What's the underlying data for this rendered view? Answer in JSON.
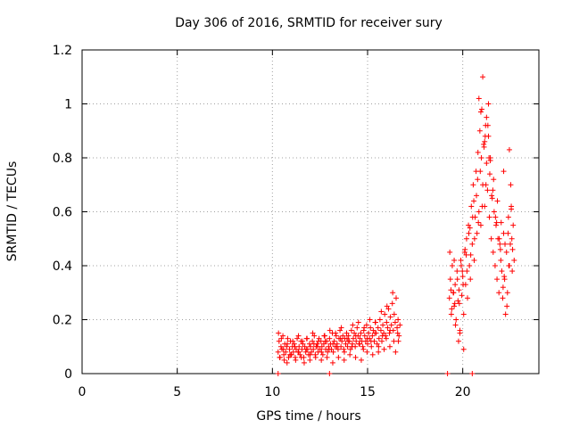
{
  "chart_data": {
    "type": "scatter",
    "title": "Day 306 of 2016, SRMTID for receiver sury",
    "xlabel": "GPS time / hours",
    "ylabel": "SRMTID / TECUs",
    "xlim": [
      0,
      24
    ],
    "ylim": [
      0,
      1.2
    ],
    "xticks": [
      0,
      5,
      10,
      15,
      20
    ],
    "xtick_labels": [
      "0",
      "5",
      "10",
      "15",
      "20"
    ],
    "yticks": [
      0,
      0.2,
      0.4,
      0.6,
      0.8,
      1.0,
      1.2
    ],
    "ytick_labels": [
      "0",
      "0.2",
      "0.4",
      "0.6",
      "0.8",
      "1",
      "1.2"
    ],
    "grid": true,
    "marker": "+",
    "series": [
      {
        "name": "SRMTID",
        "color": "#ff0000",
        "x": [
          10.3,
          10.35,
          10.4,
          10.45,
          10.5,
          10.55,
          10.6,
          10.65,
          10.7,
          10.75,
          10.8,
          10.85,
          10.9,
          10.95,
          11.0,
          11.05,
          11.1,
          11.15,
          11.2,
          11.25,
          11.3,
          11.35,
          11.4,
          11.45,
          11.5,
          11.55,
          11.6,
          11.65,
          11.7,
          11.75,
          11.8,
          11.85,
          11.9,
          11.95,
          12.0,
          12.05,
          12.1,
          12.15,
          12.2,
          12.25,
          12.3,
          12.35,
          12.4,
          12.45,
          12.5,
          12.55,
          12.6,
          12.65,
          12.7,
          12.75,
          12.8,
          12.85,
          12.9,
          12.95,
          13.0,
          13.05,
          13.1,
          13.15,
          13.2,
          13.25,
          13.3,
          13.35,
          13.4,
          13.45,
          13.5,
          13.55,
          13.6,
          13.65,
          13.7,
          13.75,
          13.8,
          13.85,
          13.9,
          13.95,
          14.0,
          14.05,
          14.1,
          14.15,
          14.2,
          14.25,
          14.3,
          14.35,
          14.4,
          14.45,
          14.5,
          14.55,
          14.6,
          14.65,
          14.7,
          14.75,
          14.8,
          14.85,
          14.9,
          14.95,
          15.0,
          15.05,
          15.1,
          15.15,
          15.2,
          15.25,
          15.3,
          15.35,
          15.4,
          15.45,
          15.5,
          15.55,
          15.6,
          15.65,
          15.7,
          15.75,
          15.8,
          15.85,
          15.9,
          15.95,
          16.0,
          16.05,
          16.1,
          16.15,
          16.2,
          16.25,
          16.3,
          16.35,
          16.4,
          16.45,
          16.5,
          16.55,
          16.6,
          16.65,
          16.7,
          10.32,
          10.47,
          10.62,
          10.77,
          10.92,
          11.07,
          11.22,
          11.37,
          11.52,
          11.67,
          11.82,
          11.97,
          12.12,
          12.27,
          12.42,
          12.57,
          12.72,
          12.87,
          13.02,
          13.17,
          13.32,
          13.47,
          13.62,
          13.77,
          13.92,
          14.07,
          14.22,
          14.37,
          14.52,
          14.67,
          14.82,
          14.97,
          15.12,
          15.27,
          15.42,
          15.57,
          15.72,
          15.87,
          16.02,
          16.17,
          16.32,
          16.47,
          16.62,
          10.38,
          10.58,
          10.78,
          10.98,
          11.18,
          11.38,
          11.58,
          11.78,
          11.98,
          12.18,
          12.38,
          12.58,
          12.78,
          12.98,
          13.18,
          13.38,
          13.58,
          13.78,
          13.98,
          14.18,
          14.38,
          14.58,
          14.78,
          14.98,
          15.18,
          15.38,
          15.58,
          15.78,
          15.98,
          16.18,
          16.38,
          16.58,
          10.3,
          13.0,
          19.2,
          20.5,
          19.3,
          19.35,
          19.4,
          19.45,
          19.5,
          19.55,
          19.6,
          19.65,
          19.7,
          19.75,
          19.8,
          19.85,
          19.9,
          19.95,
          20.0,
          20.05,
          20.1,
          20.15,
          20.2,
          20.25,
          20.3,
          20.35,
          20.4,
          20.45,
          20.5,
          20.55,
          20.6,
          20.65,
          20.7,
          20.75,
          20.8,
          20.85,
          20.9,
          20.95,
          21.0,
          21.05,
          21.1,
          21.15,
          21.2,
          21.25,
          21.3,
          21.35,
          21.4,
          21.45,
          21.5,
          21.55,
          21.6,
          21.65,
          21.7,
          21.75,
          21.8,
          21.85,
          21.9,
          21.95,
          22.0,
          22.05,
          22.1,
          22.15,
          22.2,
          22.25,
          22.3,
          22.35,
          22.4,
          22.45,
          22.5,
          22.55,
          22.6,
          22.65,
          22.7,
          19.32,
          19.42,
          19.52,
          19.62,
          19.72,
          19.82,
          19.92,
          20.02,
          20.12,
          20.22,
          20.32,
          20.42,
          20.52,
          20.62,
          20.72,
          20.82,
          20.92,
          21.02,
          21.12,
          21.22,
          21.32,
          21.42,
          21.52,
          21.62,
          21.72,
          21.82,
          21.92,
          22.02,
          22.12,
          22.22,
          22.32,
          22.42,
          22.52,
          22.62,
          19.38,
          19.58,
          19.78,
          19.98,
          20.18,
          20.38,
          20.58,
          20.78,
          20.98,
          21.18,
          21.38,
          21.58,
          21.78,
          21.98,
          22.18,
          22.38,
          22.58,
          20.85,
          21.05,
          21.25,
          20.95,
          21.15,
          21.35,
          21.45,
          22.15,
          22.45,
          22.55,
          19.85,
          20.05,
          19.55
        ],
        "y": [
          0.08,
          0.12,
          0.06,
          0.1,
          0.09,
          0.14,
          0.07,
          0.11,
          0.08,
          0.1,
          0.13,
          0.06,
          0.09,
          0.12,
          0.07,
          0.1,
          0.08,
          0.11,
          0.06,
          0.09,
          0.13,
          0.08,
          0.1,
          0.07,
          0.12,
          0.09,
          0.11,
          0.06,
          0.1,
          0.08,
          0.13,
          0.09,
          0.07,
          0.11,
          0.1,
          0.08,
          0.12,
          0.09,
          0.14,
          0.07,
          0.1,
          0.11,
          0.08,
          0.13,
          0.09,
          0.12,
          0.1,
          0.07,
          0.11,
          0.14,
          0.09,
          0.12,
          0.08,
          0.1,
          0.13,
          0.11,
          0.09,
          0.15,
          0.08,
          0.12,
          0.1,
          0.14,
          0.11,
          0.09,
          0.13,
          0.16,
          0.1,
          0.12,
          0.14,
          0.09,
          0.13,
          0.11,
          0.15,
          0.1,
          0.14,
          0.12,
          0.09,
          0.16,
          0.11,
          0.13,
          0.15,
          0.1,
          0.12,
          0.17,
          0.14,
          0.11,
          0.13,
          0.15,
          0.12,
          0.1,
          0.16,
          0.14,
          0.12,
          0.18,
          0.11,
          0.15,
          0.13,
          0.17,
          0.1,
          0.14,
          0.16,
          0.12,
          0.19,
          0.15,
          0.11,
          0.17,
          0.13,
          0.2,
          0.16,
          0.12,
          0.18,
          0.15,
          0.22,
          0.14,
          0.19,
          0.17,
          0.24,
          0.15,
          0.21,
          0.18,
          0.26,
          0.16,
          0.22,
          0.19,
          0.28,
          0.17,
          0.2,
          0.14,
          0.18,
          0.15,
          0.13,
          0.05,
          0.04,
          0.07,
          0.12,
          0.05,
          0.14,
          0.06,
          0.04,
          0.13,
          0.05,
          0.15,
          0.06,
          0.12,
          0.05,
          0.14,
          0.06,
          0.16,
          0.04,
          0.15,
          0.06,
          0.17,
          0.05,
          0.13,
          0.07,
          0.18,
          0.06,
          0.19,
          0.05,
          0.17,
          0.08,
          0.2,
          0.07,
          0.19,
          0.08,
          0.23,
          0.09,
          0.25,
          0.1,
          0.3,
          0.08,
          0.12,
          0.06,
          0.09,
          0.11,
          0.07,
          0.1,
          0.08,
          0.12,
          0.09,
          0.07,
          0.11,
          0.1,
          0.08,
          0.12,
          0.09,
          0.11,
          0.1,
          0.13,
          0.08,
          0.12,
          0.1,
          0.14,
          0.11,
          0.09,
          0.13,
          0.12,
          0.15,
          0.1,
          0.14,
          0.13,
          0.16,
          0.12,
          0.15,
          0.0,
          0.0,
          0.0,
          0.0,
          0.28,
          0.35,
          0.22,
          0.4,
          0.3,
          0.25,
          0.33,
          0.2,
          0.38,
          0.27,
          0.31,
          0.15,
          0.42,
          0.29,
          0.36,
          0.22,
          0.45,
          0.33,
          0.5,
          0.28,
          0.55,
          0.4,
          0.35,
          0.62,
          0.48,
          0.7,
          0.42,
          0.58,
          0.75,
          0.52,
          0.82,
          0.6,
          0.9,
          0.55,
          0.98,
          0.7,
          0.85,
          0.62,
          0.92,
          0.78,
          0.68,
          0.88,
          0.58,
          0.8,
          0.5,
          0.65,
          0.45,
          0.6,
          0.4,
          0.55,
          0.35,
          0.5,
          0.3,
          0.48,
          0.42,
          0.38,
          0.28,
          0.52,
          0.35,
          0.22,
          0.45,
          0.3,
          0.58,
          0.4,
          0.48,
          0.62,
          0.38,
          0.55,
          0.42,
          0.45,
          0.24,
          0.3,
          0.18,
          0.35,
          0.26,
          0.4,
          0.33,
          0.46,
          0.38,
          0.52,
          0.44,
          0.58,
          0.5,
          0.66,
          0.56,
          0.75,
          0.62,
          0.84,
          0.7,
          0.92,
          0.74,
          0.66,
          0.72,
          0.58,
          0.64,
          0.5,
          0.56,
          0.32,
          0.48,
          0.25,
          0.4,
          0.7,
          0.46,
          0.31,
          0.26,
          0.12,
          0.38,
          0.44,
          0.54,
          0.64,
          0.72,
          0.8,
          0.88,
          0.8,
          0.68,
          0.56,
          0.46,
          0.36,
          0.52,
          0.5,
          1.02,
          1.1,
          0.95,
          0.97,
          0.86,
          1.0,
          0.79,
          0.75,
          0.83,
          0.61,
          0.16,
          0.09,
          0.42
        ]
      }
    ],
    "legend": "none"
  }
}
